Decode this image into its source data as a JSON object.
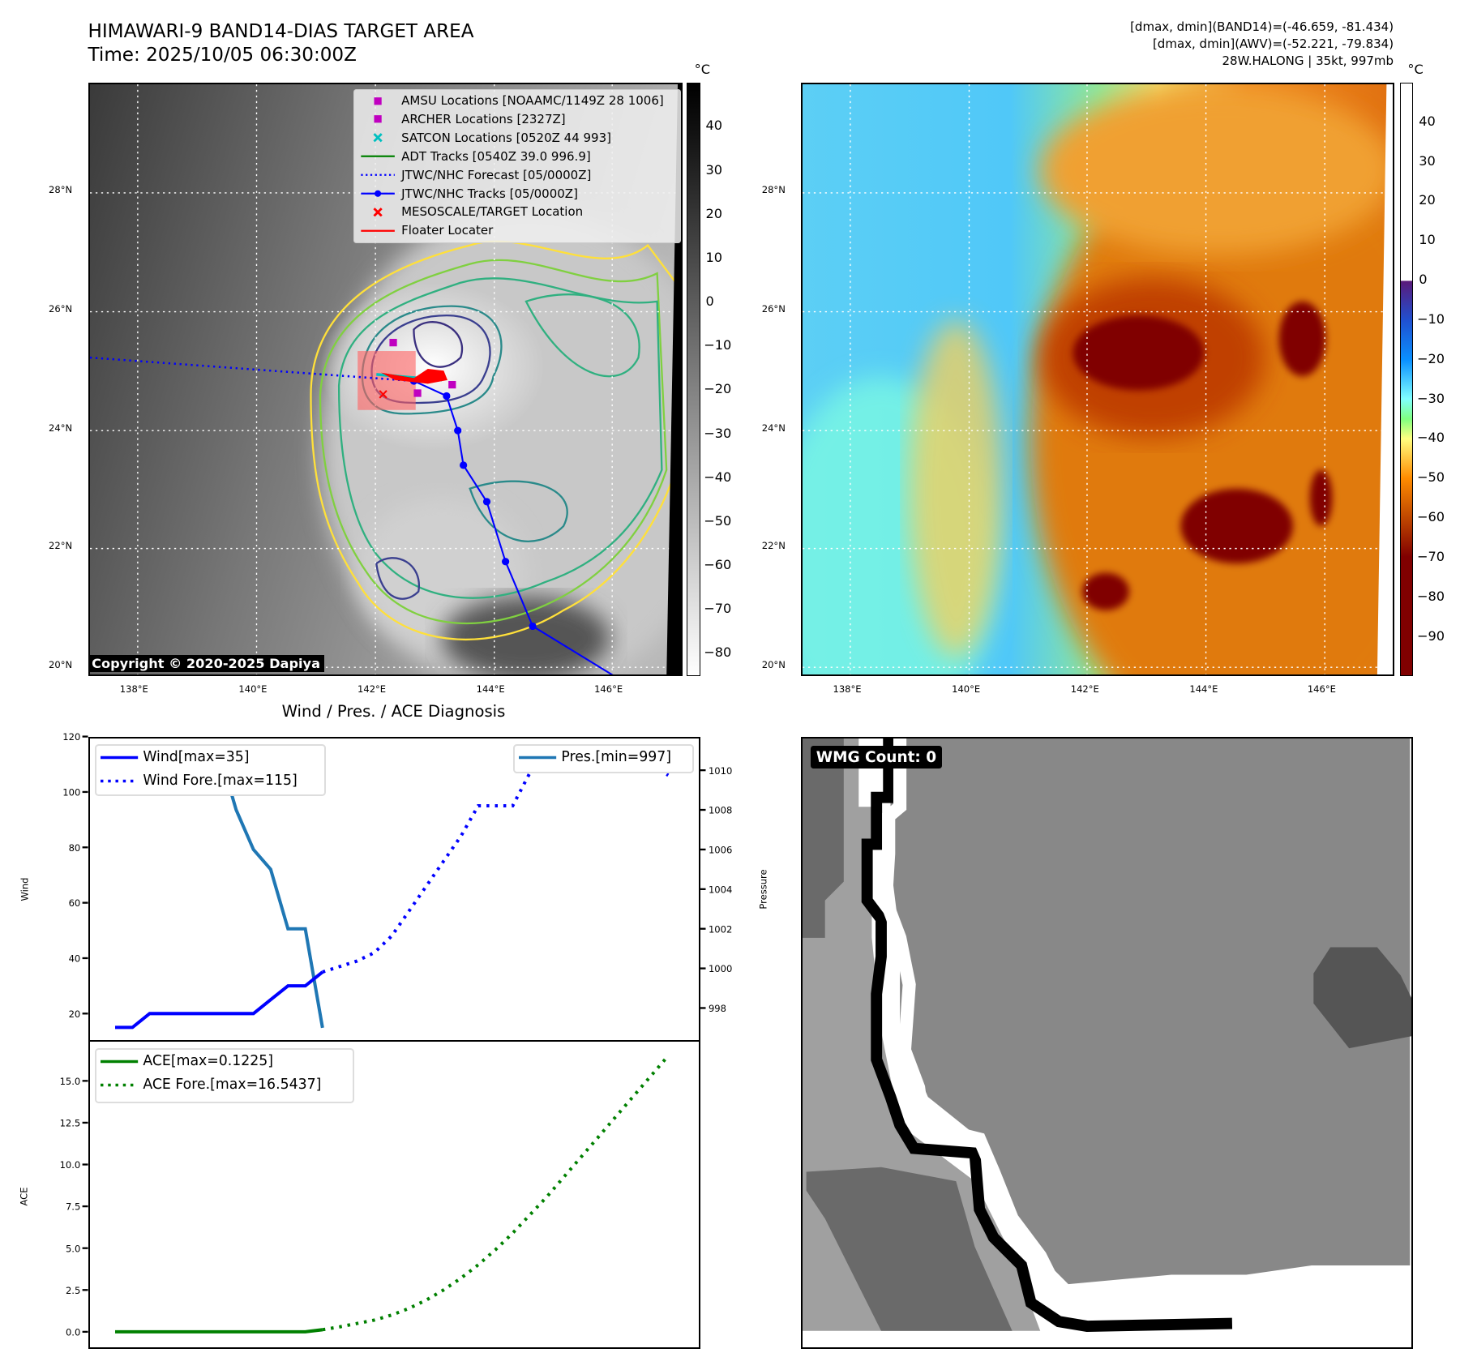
{
  "header": {
    "title": "HIMAWARI-9 BAND14-DIAS TARGET AREA",
    "time": "Time: 2025/10/05 06:30:00Z",
    "info_band14": "[dmax, dmin](BAND14)=(-46.659, -81.434)",
    "info_awv": "[dmax, dmin](AWV)=(-52.221, -79.834)",
    "info_storm": "28W.HALONG | 35kt, 997mb"
  },
  "map": {
    "lat_labels": [
      "28°N",
      "26°N",
      "24°N",
      "22°N",
      "20°N"
    ],
    "lon_labels": [
      "138°E",
      "140°E",
      "142°E",
      "144°E",
      "146°E"
    ],
    "copyright": "Copyright © 2020-2025 Dapiya",
    "legend": [
      {
        "label": "AMSU Locations [NOAAMC/1149Z 28 1006]",
        "icon": "square-marker-icon",
        "color": "#c000c0"
      },
      {
        "label": "ARCHER Locations [2327Z]",
        "icon": "square-marker-icon",
        "color": "#c000c0"
      },
      {
        "label": "SATCON Locations [0520Z 44 993]",
        "icon": "x-marker-icon",
        "color": "#00c0c0"
      },
      {
        "label": "ADT Tracks [0540Z 39.0 996.9]",
        "icon": "line-icon",
        "color": "#008000"
      },
      {
        "label": "JTWC/NHC Forecast [05/0000Z]",
        "icon": "dotted-line-icon",
        "color": "#0000ff"
      },
      {
        "label": "JTWC/NHC Tracks [05/0000Z]",
        "icon": "line-dot-icon",
        "color": "#0000ff"
      },
      {
        "label": "MESOSCALE/TARGET Location",
        "icon": "x-marker-icon",
        "color": "#ff0000"
      },
      {
        "label": "Floater Locater",
        "icon": "line-icon",
        "color": "#ff0000"
      }
    ]
  },
  "colorbar_gray": {
    "unit": "°C",
    "ticks": [
      "40",
      "30",
      "20",
      "10",
      "0",
      "−10",
      "−20",
      "−30",
      "−40",
      "−50",
      "−60",
      "−70",
      "−80"
    ]
  },
  "colorbar_color": {
    "unit": "°C",
    "ticks": [
      "40",
      "30",
      "20",
      "10",
      "0",
      "−10",
      "−20",
      "−30",
      "−40",
      "−50",
      "−60",
      "−70",
      "−80",
      "−90"
    ]
  },
  "wmg": {
    "label": "WMG Count: 0"
  },
  "chart_data": {
    "type": "line",
    "title": "Wind / Pres. / ACE Diagnosis",
    "panels": [
      {
        "ylabel": "Wind",
        "ylim": [
          10.2,
          120
        ],
        "yticks": [
          20,
          40,
          60,
          80,
          100,
          120
        ],
        "y2label": "Pressure",
        "y2lim": [
          996.35,
          1011.7
        ],
        "y2ticks": [
          998,
          1000,
          1002,
          1004,
          1006,
          1008,
          1010
        ],
        "series": [
          {
            "name": "Wind[max=35]",
            "style": "solid",
            "color": "#0000ff",
            "x_start": 0,
            "values": [
              15,
              15,
              20,
              20,
              20,
              20,
              20,
              20,
              20,
              25,
              30,
              30,
              35
            ]
          },
          {
            "name": "Wind Fore.[max=115]",
            "style": "dotted",
            "color": "#0000ff",
            "x_start": 12,
            "values": [
              35,
              37,
              39,
              42,
              48,
              57,
              66,
              75,
              84,
              95,
              95,
              95,
              107,
              110,
              110,
              112,
              115,
              112,
              110,
              110,
              106
            ]
          },
          {
            "name": "Pres.[min=997]",
            "style": "solid",
            "color": "#1f77b4",
            "axis": "right",
            "x_start": 0,
            "values": [
              1009,
              1009,
              1009,
              1010,
              1011,
              1011,
              1011,
              1008,
              1006,
              1005,
              1002,
              1002,
              997
            ]
          }
        ]
      },
      {
        "ylabel": "ACE",
        "ylim": [
          -0.95,
          17.4
        ],
        "yticks": [
          "0.0",
          "2.5",
          "5.0",
          "7.5",
          "10.0",
          "12.5",
          "15.0"
        ],
        "series": [
          {
            "name": "ACE[max=0.1225]",
            "style": "solid",
            "color": "#008000",
            "x_start": 0,
            "values": [
              0,
              0,
              0,
              0,
              0,
              0,
              0,
              0,
              0,
              0,
              0,
              0,
              0.1225
            ]
          },
          {
            "name": "ACE Fore.[max=16.5437]",
            "style": "dotted",
            "color": "#008000",
            "x_start": 12,
            "values": [
              0.1225,
              0.3,
              0.5,
              0.7,
              1.0,
              1.4,
              1.9,
              2.5,
              3.2,
              4.0,
              4.9,
              5.9,
              7.0,
              8.1,
              9.3,
              10.5,
              11.7,
              12.9,
              14.1,
              15.3,
              16.5
            ]
          }
        ]
      }
    ]
  }
}
